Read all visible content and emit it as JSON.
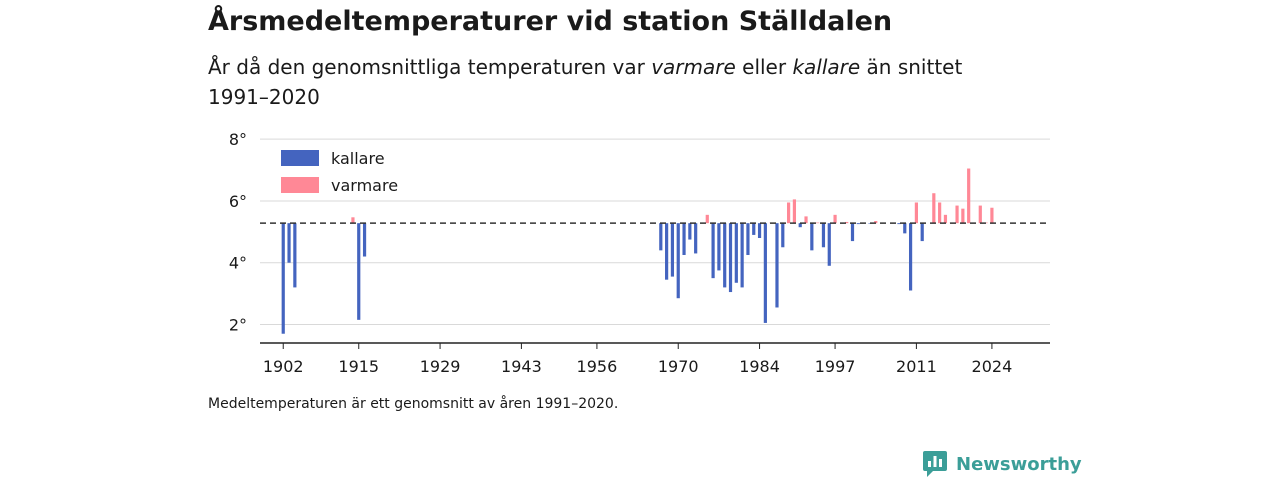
{
  "title": "Årsmedeltemperaturer vid station Ställdalen",
  "subtitle": {
    "part1": "År då den genomsnittliga temperaturen var ",
    "warm": "varmare",
    "part2": " eller ",
    "cold": "kallare",
    "part3": " än snittet 1991–2020"
  },
  "note": "Medeltemperaturen är ett genomsnitt av åren 1991–2020.",
  "brand": "Newsworthy",
  "colors": {
    "colder": "#4464bf",
    "warmer": "#ff8896",
    "axis": "#222222",
    "grid": "#d9d9d9",
    "brand": "#3b9e98"
  },
  "chart_data": {
    "type": "bar",
    "baseline": 5.28,
    "baseline_style": "dashed",
    "ylim": [
      1.4,
      8.2
    ],
    "yticks": [
      2,
      4,
      6,
      8
    ],
    "ytick_labels": [
      "2°",
      "4°",
      "6°",
      "8°"
    ],
    "xlim": [
      1898,
      2034
    ],
    "xticks": [
      1902,
      1915,
      1929,
      1943,
      1956,
      1970,
      1984,
      1997,
      2011,
      2024
    ],
    "grid": true,
    "legend": {
      "placement": "top-left",
      "items": [
        {
          "name": "kallare",
          "color": "#4464bf"
        },
        {
          "name": "varmare",
          "color": "#ff8896"
        }
      ]
    },
    "x": [
      1902,
      1903,
      1904,
      1914,
      1915,
      1916,
      1967,
      1968,
      1969,
      1970,
      1971,
      1972,
      1973,
      1975,
      1976,
      1977,
      1978,
      1979,
      1980,
      1981,
      1982,
      1983,
      1984,
      1985,
      1986,
      1987,
      1988,
      1989,
      1990,
      1991,
      1992,
      1993,
      1994,
      1995,
      1996,
      1997,
      1999,
      2000,
      2001,
      2003,
      2004,
      2005,
      2007,
      2008,
      2009,
      2010,
      2011,
      2012,
      2014,
      2015,
      2016,
      2017,
      2018,
      2019,
      2020,
      2021,
      2022,
      2023,
      2024
    ],
    "values": [
      1.7,
      4.0,
      3.2,
      5.47,
      2.15,
      4.2,
      4.4,
      3.45,
      3.55,
      2.85,
      4.25,
      4.75,
      4.3,
      5.55,
      3.5,
      3.75,
      3.2,
      3.05,
      3.35,
      3.2,
      4.25,
      4.9,
      4.8,
      2.05,
      5.3,
      2.55,
      4.5,
      5.95,
      6.05,
      5.15,
      5.5,
      4.4,
      5.3,
      4.5,
      3.9,
      5.55,
      5.32,
      4.7,
      5.25,
      5.27,
      5.35,
      5.3,
      5.3,
      5.25,
      4.95,
      3.1,
      5.95,
      4.7,
      6.25,
      5.95,
      5.55,
      5.3,
      5.85,
      5.75,
      7.05,
      5.3,
      5.85,
      5.3,
      5.78
    ]
  }
}
